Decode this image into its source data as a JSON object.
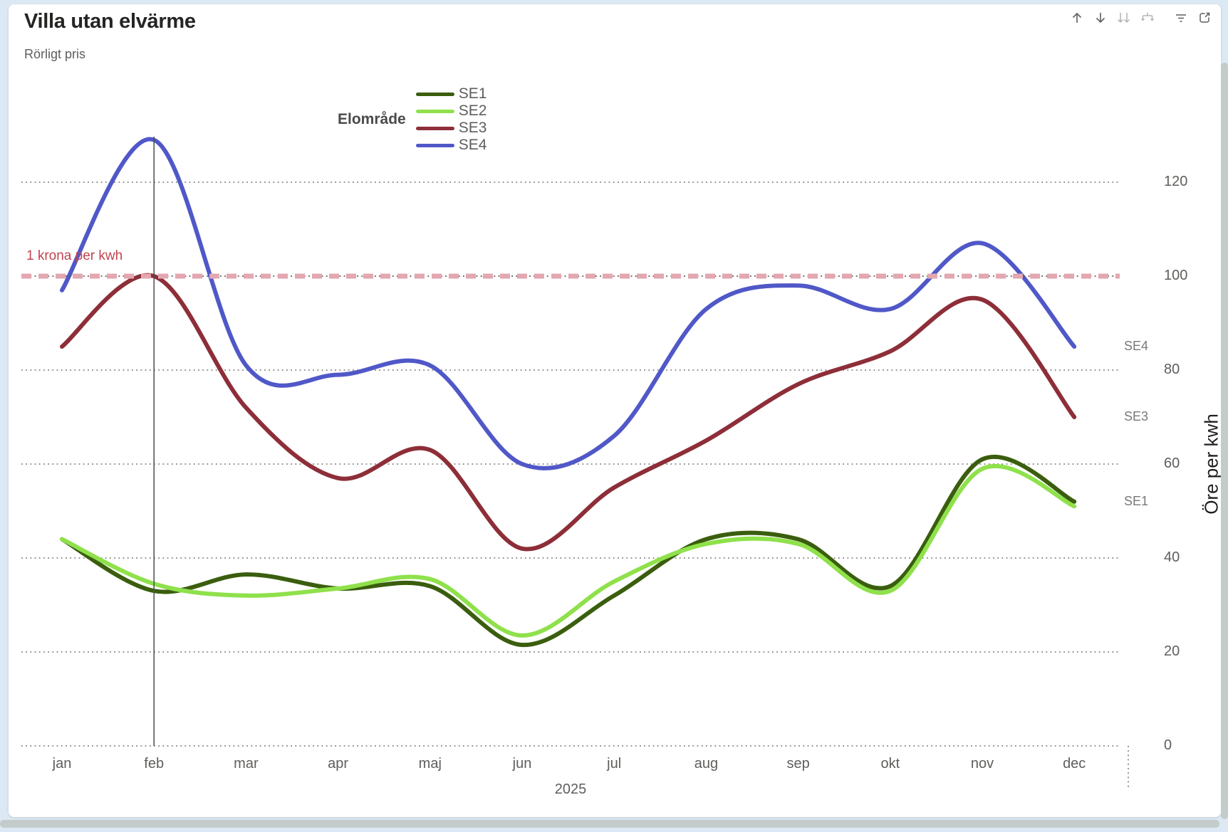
{
  "header": {
    "title": "Villa utan elvärme",
    "subtitle": "Rörligt pris",
    "icons": [
      {
        "name": "drill-up-icon",
        "disabled": false
      },
      {
        "name": "drill-down-icon",
        "disabled": false
      },
      {
        "name": "expand-all-down-icon",
        "disabled": true
      },
      {
        "name": "expand-next-level-icon",
        "disabled": true
      },
      {
        "name": "filter-icon",
        "disabled": false
      },
      {
        "name": "focus-mode-icon",
        "disabled": false
      }
    ]
  },
  "legend": {
    "title": "Elområde",
    "items": [
      {
        "label": "SE1",
        "color": "#3A5E0E"
      },
      {
        "label": "SE2",
        "color": "#8FE14B"
      },
      {
        "label": "SE3",
        "color": "#8D2E38"
      },
      {
        "label": "SE4",
        "color": "#5058C8"
      }
    ]
  },
  "chart_data": {
    "type": "line",
    "title": "Villa utan elvärme",
    "subtitle": "Rörligt pris",
    "x": [
      "jan",
      "feb",
      "mar",
      "apr",
      "maj",
      "jun",
      "jul",
      "aug",
      "sep",
      "okt",
      "nov",
      "dec"
    ],
    "xlabel": "2025",
    "ylabel": "Öre per kwh",
    "ylim": [
      0,
      130
    ],
    "yticks": [
      0,
      20,
      40,
      60,
      80,
      100,
      120
    ],
    "grid": true,
    "legend_title": "Elområde",
    "legend_position": "top",
    "line_interpolation": "smooth",
    "series": [
      {
        "name": "SE1",
        "color": "#3A5E0E",
        "values": [
          44,
          33,
          36.5,
          33.5,
          34,
          21.5,
          32,
          44,
          44,
          34,
          61,
          52
        ]
      },
      {
        "name": "SE2",
        "color": "#8FE14B",
        "values": [
          44,
          34.5,
          32,
          33.5,
          35.5,
          23.5,
          35,
          43,
          43,
          33,
          59,
          51
        ]
      },
      {
        "name": "SE3",
        "color": "#8D2E38",
        "values": [
          85,
          100,
          72,
          57,
          63,
          42,
          55,
          65,
          77,
          84,
          95,
          70
        ]
      },
      {
        "name": "SE4",
        "color": "#5058C8",
        "values": [
          97,
          129,
          81,
          79,
          81,
          60,
          66,
          93,
          98,
          93,
          107,
          85
        ]
      }
    ],
    "reference_line": {
      "value": 100,
      "label": "1 krona per kwh",
      "line_color": "#E3A7B0",
      "label_color": "#C0444F"
    },
    "selected_category": "feb",
    "series_end_labels": [
      "SE4",
      "SE3",
      "SE1"
    ],
    "gridline_color": "#4c4c4c"
  }
}
